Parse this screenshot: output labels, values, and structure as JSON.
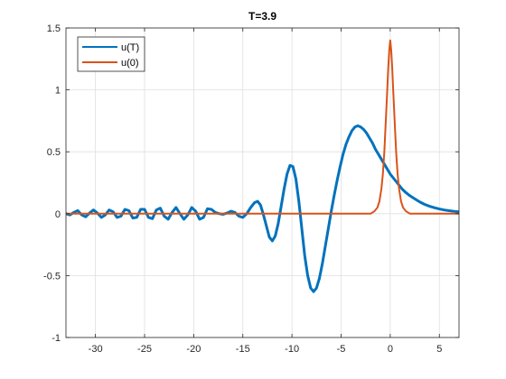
{
  "chart_data": {
    "type": "line",
    "title": "T=3.9",
    "xlabel": "",
    "ylabel": "",
    "xlim": [
      -33,
      7
    ],
    "ylim": [
      -1,
      1.5
    ],
    "xticks": [
      -30,
      -25,
      -20,
      -15,
      -10,
      -5,
      0,
      5
    ],
    "yticks": [
      -1,
      -0.5,
      0,
      0.5,
      1,
      1.5
    ],
    "grid": true,
    "legend_position": "top-left",
    "series": [
      {
        "name": "u(T)",
        "color": "#0072BD",
        "points": [
          [
            -33,
            0.0
          ],
          [
            -32.6,
            -0.01
          ],
          [
            -32.2,
            0.01
          ],
          [
            -31.8,
            0.025
          ],
          [
            -31.4,
            -0.01
          ],
          [
            -31.0,
            -0.025
          ],
          [
            -30.6,
            0.005
          ],
          [
            -30.2,
            0.03
          ],
          [
            -29.8,
            0.005
          ],
          [
            -29.4,
            -0.03
          ],
          [
            -29.0,
            -0.01
          ],
          [
            -28.6,
            0.03
          ],
          [
            -28.2,
            0.015
          ],
          [
            -27.8,
            -0.03
          ],
          [
            -27.4,
            -0.02
          ],
          [
            -27.0,
            0.035
          ],
          [
            -26.6,
            0.025
          ],
          [
            -26.2,
            -0.035
          ],
          [
            -25.8,
            -0.03
          ],
          [
            -25.4,
            0.035
          ],
          [
            -25.0,
            0.035
          ],
          [
            -24.6,
            -0.03
          ],
          [
            -24.2,
            -0.04
          ],
          [
            -23.8,
            0.03
          ],
          [
            -23.4,
            0.045
          ],
          [
            -23.0,
            -0.02
          ],
          [
            -22.6,
            -0.045
          ],
          [
            -22.2,
            0.01
          ],
          [
            -21.8,
            0.05
          ],
          [
            -21.4,
            0.0
          ],
          [
            -21.0,
            -0.045
          ],
          [
            -20.6,
            -0.01
          ],
          [
            -20.2,
            0.05
          ],
          [
            -19.8,
            0.02
          ],
          [
            -19.4,
            -0.045
          ],
          [
            -19.0,
            -0.03
          ],
          [
            -18.6,
            0.04
          ],
          [
            -18.2,
            0.035
          ],
          [
            -17.8,
            0.01
          ],
          [
            -17.4,
            0.0
          ],
          [
            -17.0,
            -0.005
          ],
          [
            -16.6,
            0.005
          ],
          [
            -16.2,
            0.02
          ],
          [
            -15.8,
            0.01
          ],
          [
            -15.4,
            -0.02
          ],
          [
            -15.0,
            -0.03
          ],
          [
            -14.6,
            0.0
          ],
          [
            -14.2,
            0.05
          ],
          [
            -13.8,
            0.09
          ],
          [
            -13.5,
            0.1
          ],
          [
            -13.2,
            0.07
          ],
          [
            -12.9,
            -0.01
          ],
          [
            -12.6,
            -0.1
          ],
          [
            -12.3,
            -0.19
          ],
          [
            -12.0,
            -0.22
          ],
          [
            -11.7,
            -0.18
          ],
          [
            -11.4,
            -0.08
          ],
          [
            -11.1,
            0.06
          ],
          [
            -10.8,
            0.2
          ],
          [
            -10.5,
            0.32
          ],
          [
            -10.2,
            0.39
          ],
          [
            -9.9,
            0.38
          ],
          [
            -9.6,
            0.28
          ],
          [
            -9.3,
            0.1
          ],
          [
            -9.0,
            -0.12
          ],
          [
            -8.7,
            -0.34
          ],
          [
            -8.4,
            -0.5
          ],
          [
            -8.1,
            -0.6
          ],
          [
            -7.8,
            -0.63
          ],
          [
            -7.5,
            -0.6
          ],
          [
            -7.2,
            -0.52
          ],
          [
            -6.9,
            -0.4
          ],
          [
            -6.6,
            -0.26
          ],
          [
            -6.3,
            -0.12
          ],
          [
            -6.0,
            0.02
          ],
          [
            -5.7,
            0.15
          ],
          [
            -5.4,
            0.27
          ],
          [
            -5.1,
            0.38
          ],
          [
            -4.8,
            0.48
          ],
          [
            -4.5,
            0.56
          ],
          [
            -4.2,
            0.62
          ],
          [
            -3.9,
            0.67
          ],
          [
            -3.6,
            0.7
          ],
          [
            -3.3,
            0.71
          ],
          [
            -3.0,
            0.7
          ],
          [
            -2.7,
            0.68
          ],
          [
            -2.4,
            0.65
          ],
          [
            -2.1,
            0.61
          ],
          [
            -1.8,
            0.57
          ],
          [
            -1.5,
            0.52
          ],
          [
            -1.2,
            0.48
          ],
          [
            -0.9,
            0.44
          ],
          [
            -0.6,
            0.4
          ],
          [
            -0.3,
            0.36
          ],
          [
            0.0,
            0.32
          ],
          [
            0.4,
            0.28
          ],
          [
            0.8,
            0.24
          ],
          [
            1.2,
            0.2
          ],
          [
            1.6,
            0.17
          ],
          [
            2.0,
            0.145
          ],
          [
            2.5,
            0.12
          ],
          [
            3.0,
            0.095
          ],
          [
            3.5,
            0.075
          ],
          [
            4.0,
            0.06
          ],
          [
            4.5,
            0.048
          ],
          [
            5.0,
            0.038
          ],
          [
            5.5,
            0.03
          ],
          [
            6.0,
            0.024
          ],
          [
            6.5,
            0.019
          ],
          [
            7.0,
            0.015
          ]
        ]
      },
      {
        "name": "u(0)",
        "color": "#D95319",
        "points": [
          [
            -33,
            0.0
          ],
          [
            -3.0,
            0.0
          ],
          [
            -2.0,
            0.0
          ],
          [
            -1.6,
            0.02
          ],
          [
            -1.3,
            0.05
          ],
          [
            -1.1,
            0.1
          ],
          [
            -0.9,
            0.2
          ],
          [
            -0.75,
            0.32
          ],
          [
            -0.6,
            0.5
          ],
          [
            -0.45,
            0.75
          ],
          [
            -0.3,
            1.0
          ],
          [
            -0.2,
            1.18
          ],
          [
            -0.1,
            1.32
          ],
          [
            0.0,
            1.4
          ],
          [
            0.1,
            1.32
          ],
          [
            0.2,
            1.18
          ],
          [
            0.3,
            1.0
          ],
          [
            0.45,
            0.75
          ],
          [
            0.6,
            0.5
          ],
          [
            0.75,
            0.32
          ],
          [
            0.9,
            0.2
          ],
          [
            1.1,
            0.1
          ],
          [
            1.3,
            0.05
          ],
          [
            1.6,
            0.02
          ],
          [
            2.0,
            0.0
          ],
          [
            3.0,
            0.0
          ],
          [
            7.0,
            0.0
          ]
        ]
      }
    ]
  }
}
